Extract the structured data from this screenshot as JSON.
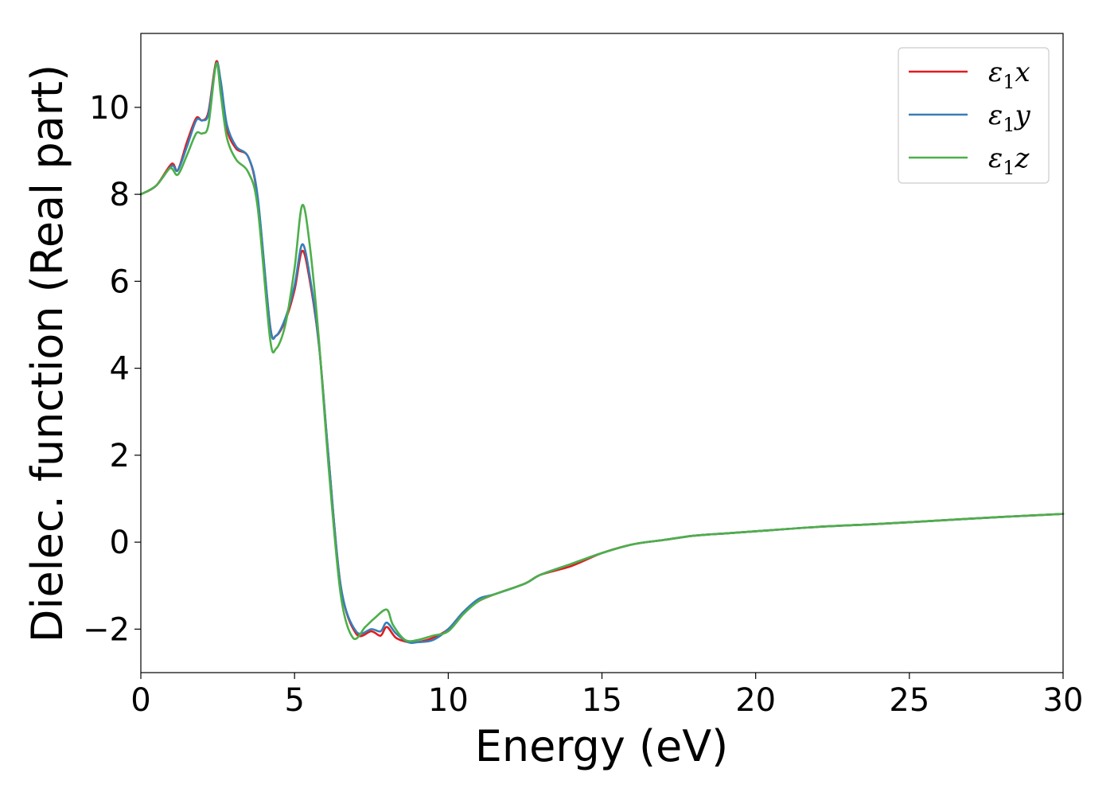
{
  "chart_data": {
    "type": "line",
    "title": "",
    "xlabel": "Energy (eV)",
    "ylabel": "Dielec. function (Real part)",
    "xlim": [
      0,
      30
    ],
    "ylim": [
      -3,
      11.7
    ],
    "xticks": [
      0,
      5,
      10,
      15,
      20,
      25,
      30
    ],
    "yticks": [
      -2,
      0,
      2,
      4,
      6,
      8,
      10
    ],
    "xtick_labels": [
      "0",
      "5",
      "10",
      "15",
      "20",
      "25",
      "30"
    ],
    "ytick_labels": [
      "−2",
      "0",
      "2",
      "4",
      "6",
      "8",
      "10"
    ],
    "grid": false,
    "legend_position": "top-right",
    "colors": {
      "x": "#e41a1c",
      "y": "#377eb8",
      "z": "#4daf4a"
    },
    "series": [
      {
        "name": "ε₁x",
        "legend": {
          "base": "ε",
          "sub": "1",
          "axis": "x"
        },
        "x": [
          0,
          0.5,
          1.0,
          1.2,
          1.5,
          1.8,
          2.0,
          2.2,
          2.45,
          2.6,
          2.8,
          3.1,
          3.5,
          3.8,
          4.2,
          4.4,
          4.7,
          5.0,
          5.25,
          5.5,
          5.8,
          6.1,
          6.5,
          7.0,
          7.5,
          7.8,
          8.0,
          8.3,
          8.7,
          9.0,
          9.5,
          10.0,
          10.5,
          11.0,
          11.5,
          12.5,
          13.0,
          14.0,
          15.0,
          16.0,
          17.0,
          18.0,
          19.0,
          20.0,
          22.0,
          24.0,
          26.0,
          28.0,
          30.0
        ],
        "y": [
          8.0,
          8.2,
          8.7,
          8.55,
          9.2,
          9.75,
          9.7,
          9.9,
          11.05,
          10.5,
          9.5,
          9.05,
          8.85,
          7.9,
          5.0,
          4.75,
          5.1,
          5.8,
          6.7,
          6.0,
          4.5,
          2.0,
          -1.0,
          -2.1,
          -2.05,
          -2.15,
          -1.95,
          -2.2,
          -2.3,
          -2.3,
          -2.2,
          -2.0,
          -1.6,
          -1.35,
          -1.2,
          -0.95,
          -0.75,
          -0.55,
          -0.25,
          -0.05,
          0.05,
          0.15,
          0.2,
          0.25,
          0.35,
          0.42,
          0.5,
          0.58,
          0.65
        ]
      },
      {
        "name": "ε₁y",
        "legend": {
          "base": "ε",
          "sub": "1",
          "axis": "y"
        },
        "x": [
          0,
          0.5,
          1.0,
          1.2,
          1.5,
          1.8,
          2.0,
          2.2,
          2.45,
          2.6,
          2.8,
          3.1,
          3.5,
          3.8,
          4.2,
          4.4,
          4.7,
          5.0,
          5.25,
          5.5,
          5.8,
          6.1,
          6.5,
          7.0,
          7.5,
          7.8,
          8.0,
          8.3,
          8.7,
          9.0,
          9.5,
          10.0,
          10.5,
          11.0,
          11.5,
          12.5,
          13.0,
          14.0,
          15.0,
          16.0,
          17.0,
          18.0,
          19.0,
          20.0,
          22.0,
          24.0,
          26.0,
          28.0,
          30.0
        ],
        "y": [
          8.0,
          8.2,
          8.65,
          8.55,
          9.1,
          9.7,
          9.7,
          9.85,
          11.0,
          10.6,
          9.6,
          9.1,
          8.85,
          7.95,
          5.0,
          4.75,
          5.15,
          5.9,
          6.85,
          6.1,
          4.5,
          2.0,
          -1.0,
          -2.05,
          -2.0,
          -2.05,
          -1.85,
          -2.1,
          -2.3,
          -2.3,
          -2.25,
          -2.0,
          -1.6,
          -1.3,
          -1.2,
          -0.95,
          -0.75,
          -0.5,
          -0.25,
          -0.05,
          0.05,
          0.15,
          0.2,
          0.25,
          0.35,
          0.42,
          0.5,
          0.58,
          0.65
        ]
      },
      {
        "name": "ε₁z",
        "legend": {
          "base": "ε",
          "sub": "1",
          "axis": "z"
        },
        "x": [
          0,
          0.5,
          0.95,
          1.2,
          1.5,
          1.8,
          2.0,
          2.2,
          2.45,
          2.6,
          2.8,
          3.1,
          3.5,
          3.8,
          4.2,
          4.4,
          4.7,
          5.0,
          5.25,
          5.5,
          5.8,
          6.1,
          6.5,
          6.9,
          7.3,
          7.6,
          8.0,
          8.2,
          8.6,
          9.0,
          9.5,
          10.0,
          10.5,
          11.0,
          11.5,
          12.5,
          13.0,
          14.0,
          15.0,
          16.0,
          17.0,
          18.0,
          19.0,
          20.0,
          22.0,
          24.0,
          26.0,
          28.0,
          30.0
        ],
        "y": [
          8.0,
          8.2,
          8.6,
          8.45,
          8.9,
          9.4,
          9.4,
          9.6,
          11.0,
          10.3,
          9.3,
          8.8,
          8.5,
          7.7,
          4.7,
          4.45,
          5.0,
          6.3,
          7.75,
          6.8,
          4.6,
          1.8,
          -1.2,
          -2.2,
          -1.95,
          -1.75,
          -1.55,
          -1.9,
          -2.25,
          -2.25,
          -2.15,
          -2.05,
          -1.65,
          -1.35,
          -1.2,
          -0.95,
          -0.75,
          -0.5,
          -0.25,
          -0.05,
          0.05,
          0.15,
          0.2,
          0.25,
          0.35,
          0.42,
          0.5,
          0.58,
          0.65
        ]
      }
    ]
  }
}
